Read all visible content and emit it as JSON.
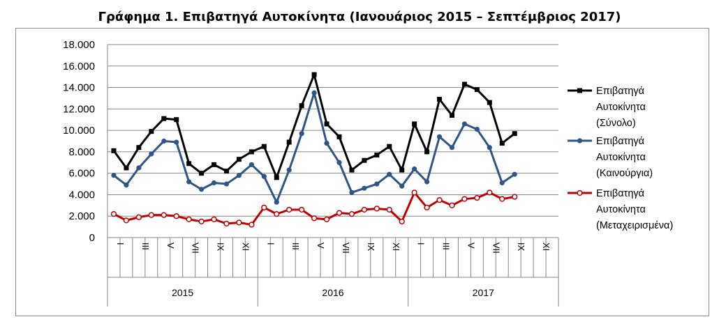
{
  "title": "Γράφημα 1. Επιβατηγά Αυτοκίνητα (Ιανουάριος 2015 – Σεπτέμβριος 2017)",
  "chart_data": {
    "type": "line",
    "title": "Γράφημα 1. Επιβατηγά Αυτοκίνητα (Ιανουάριος 2015 – Σεπτέμβριος 2017)",
    "xlabel": "",
    "ylabel": "",
    "ylim": [
      0,
      18000
    ],
    "y_ticks": [
      "0",
      "2.000",
      "4.000",
      "6.000",
      "8.000",
      "10.000",
      "12.000",
      "14.000",
      "16.000",
      "18.000"
    ],
    "month_ticks": [
      "I",
      "III",
      "V",
      "VII",
      "IX",
      "XI"
    ],
    "years": [
      "2015",
      "2016",
      "2017"
    ],
    "grid": true,
    "legend_position": "right",
    "series": [
      {
        "name": "Επιβατηγά Αυτοκίνητα (Σύνολο)",
        "legend_lines": [
          "Επιβατηγά",
          "Αυτοκίνητα",
          "(Σύνολο)"
        ],
        "color": "#000000",
        "marker": "square",
        "values": [
          8100,
          6500,
          8400,
          9900,
          11100,
          11000,
          6900,
          6000,
          6800,
          6200,
          7300,
          8000,
          8500,
          5600,
          8900,
          12300,
          15200,
          10600,
          9400,
          6300,
          7200,
          7700,
          8500,
          6300,
          10600,
          8000,
          12900,
          11400,
          14300,
          13800,
          12600,
          8800,
          9700
        ]
      },
      {
        "name": "Επιβατηγά Αυτοκίνητα (Καινούργια)",
        "legend_lines": [
          "Επιβατηγά",
          "Αυτοκίνητα",
          "(Καινούργια)"
        ],
        "color": "#2e5585",
        "marker": "circle",
        "values": [
          5800,
          4900,
          6500,
          7800,
          9000,
          8900,
          5200,
          4500,
          5100,
          5000,
          5800,
          6800,
          5700,
          3300,
          6300,
          9700,
          13500,
          8800,
          7000,
          4200,
          4600,
          5000,
          5900,
          4800,
          6400,
          5200,
          9400,
          8400,
          10600,
          10100,
          8400,
          5100,
          5900
        ]
      },
      {
        "name": "Επιβατηγά Αυτοκίνητα (Μεταχειρισμένα)",
        "legend_lines": [
          "Επιβατηγά",
          "Αυτοκίνητα",
          "(Μεταχειρισμένα)"
        ],
        "color": "#c00000",
        "marker": "open-circle",
        "values": [
          2200,
          1600,
          1900,
          2100,
          2100,
          2000,
          1700,
          1500,
          1700,
          1300,
          1400,
          1200,
          2800,
          2200,
          2600,
          2600,
          1800,
          1700,
          2300,
          2200,
          2600,
          2700,
          2600,
          1500,
          4200,
          2800,
          3500,
          3000,
          3600,
          3700,
          4200,
          3600,
          3800
        ]
      }
    ]
  }
}
